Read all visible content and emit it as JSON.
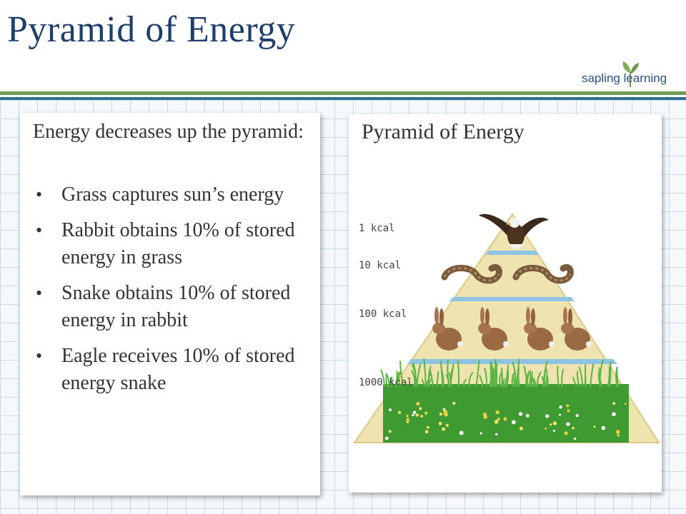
{
  "slide": {
    "title": "Pyramid of Energy",
    "logo_text": "sapling learning"
  },
  "left_panel": {
    "intro": "Energy decreases up the pyramid:",
    "bullets": [
      "Grass captures sun’s energy",
      "Rabbit obtains 10% of stored energy in grass",
      "Snake obtains 10% of stored energy in rabbit",
      "Eagle receives 10% of stored energy snake"
    ]
  },
  "right_panel": {
    "title": "Pyramid of Energy",
    "levels": [
      {
        "label": "1 kcal",
        "kcal": 1,
        "icon": "eagle-icon"
      },
      {
        "label": "10 kcal",
        "kcal": 10,
        "icon": "snake-icon"
      },
      {
        "label": "100 kcal",
        "kcal": 100,
        "icon": "rabbit-icon"
      },
      {
        "label": "1000 kcal",
        "kcal": 1000,
        "icon": "grass-icon"
      }
    ],
    "colors": {
      "pyramid_fill": "#efe3b0",
      "pyramid_edge": "#dcc98a",
      "separator": "#8ec4e3",
      "grass": "#3f9a32"
    }
  }
}
